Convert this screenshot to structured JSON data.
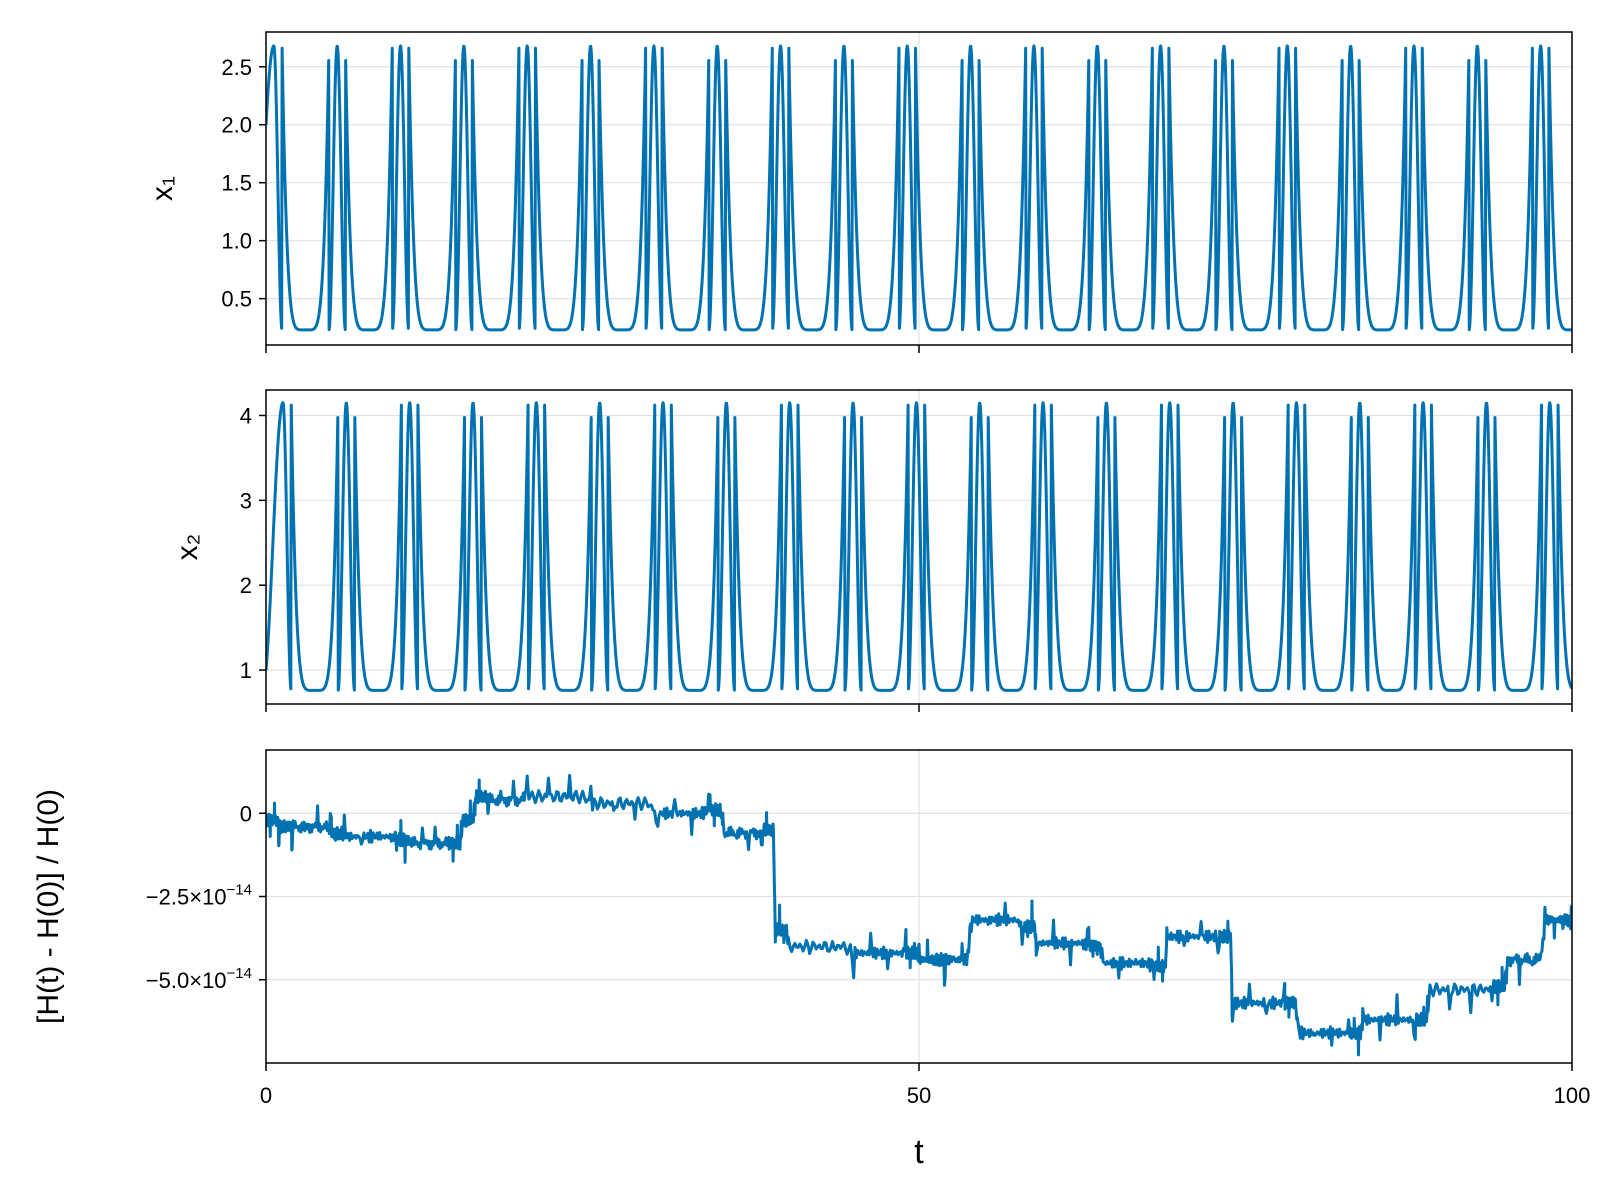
{
  "chart_data": [
    {
      "type": "line",
      "id": "x1",
      "ylabel": "x₁",
      "xlabel": "",
      "xlim": [
        0,
        100
      ],
      "ylim": [
        0.1,
        2.8
      ],
      "xticks": [
        0,
        50,
        100
      ],
      "yticks": [
        0.5,
        1.0,
        1.5,
        2.0,
        2.5
      ],
      "ytick_labels": [
        "0.5",
        "1.0",
        "1.5",
        "2.0",
        "2.5"
      ],
      "show_xtick_labels": false,
      "grid": true,
      "color": "#0072b2",
      "series": [
        {
          "x_start": 0,
          "x_end": 100,
          "initial": 2.0,
          "peak": 2.68,
          "trough": 0.23,
          "period": 4.85,
          "first_peak_t": 0.6
        }
      ]
    },
    {
      "type": "line",
      "id": "x2",
      "ylabel": "x₂",
      "xlabel": "",
      "xlim": [
        0,
        100
      ],
      "ylim": [
        0.6,
        4.3
      ],
      "xticks": [
        0,
        50,
        100
      ],
      "yticks": [
        1,
        2,
        3,
        4
      ],
      "ytick_labels": [
        "1",
        "2",
        "3",
        "4"
      ],
      "show_xtick_labels": false,
      "grid": true,
      "color": "#0072b2",
      "series": [
        {
          "x_start": 0,
          "x_end": 100,
          "initial": 1.0,
          "peak": 4.15,
          "trough": 0.76,
          "period": 4.85,
          "first_peak_t": 1.3
        }
      ]
    },
    {
      "type": "line",
      "id": "energy",
      "ylabel": "[H(t) - H(0)] / H(0)",
      "xlabel": "t",
      "xlim": [
        0,
        100
      ],
      "ylim": [
        -7.5e-14,
        1.9e-14
      ],
      "xticks": [
        0,
        50,
        100
      ],
      "xtick_labels": [
        "0",
        "50",
        "100"
      ],
      "yticks": [
        0,
        -2.5e-14,
        -5e-14
      ],
      "ytick_labels": [
        {
          "mantissa": "0",
          "exponent": ""
        },
        {
          "mantissa": "−2.5×10",
          "exponent": "−14"
        },
        {
          "mantissa": "−5.0×10",
          "exponent": "−14"
        }
      ],
      "show_xtick_labels": true,
      "grid": true,
      "color": "#0072b2",
      "series": [
        {
          "x": [
            0,
            1,
            2,
            5,
            6,
            10,
            11,
            14,
            15,
            16,
            17,
            20,
            25,
            30,
            34,
            35,
            38,
            39,
            40,
            45,
            49,
            50,
            52,
            54,
            58,
            59,
            63,
            64,
            68,
            69,
            73,
            74,
            78,
            79,
            83,
            84,
            88,
            89,
            94,
            95,
            98,
            100
          ],
          "y": [
            -2e-15,
            -4e-15,
            -4e-15,
            -6e-15,
            -7e-15,
            -8e-15,
            -9e-15,
            -9e-15,
            -2e-15,
            5e-15,
            4e-15,
            5e-15,
            3e-15,
            0.0,
            1e-15,
            -6e-15,
            -5e-15,
            -3.5e-14,
            -4e-14,
            -4.2e-14,
            -4.2e-14,
            -4.4e-14,
            -4.4e-14,
            -3.2e-14,
            -3.4e-14,
            -3.9e-14,
            -4e-14,
            -4.5e-14,
            -4.6e-14,
            -3.7e-14,
            -3.7e-14,
            -5.7e-14,
            -5.7e-14,
            -6.6e-14,
            -6.6e-14,
            -6.2e-14,
            -6.2e-14,
            -5.3e-14,
            -5.2e-14,
            -4.4e-14,
            -3.2e-14,
            -3.4e-14
          ]
        }
      ]
    }
  ]
}
